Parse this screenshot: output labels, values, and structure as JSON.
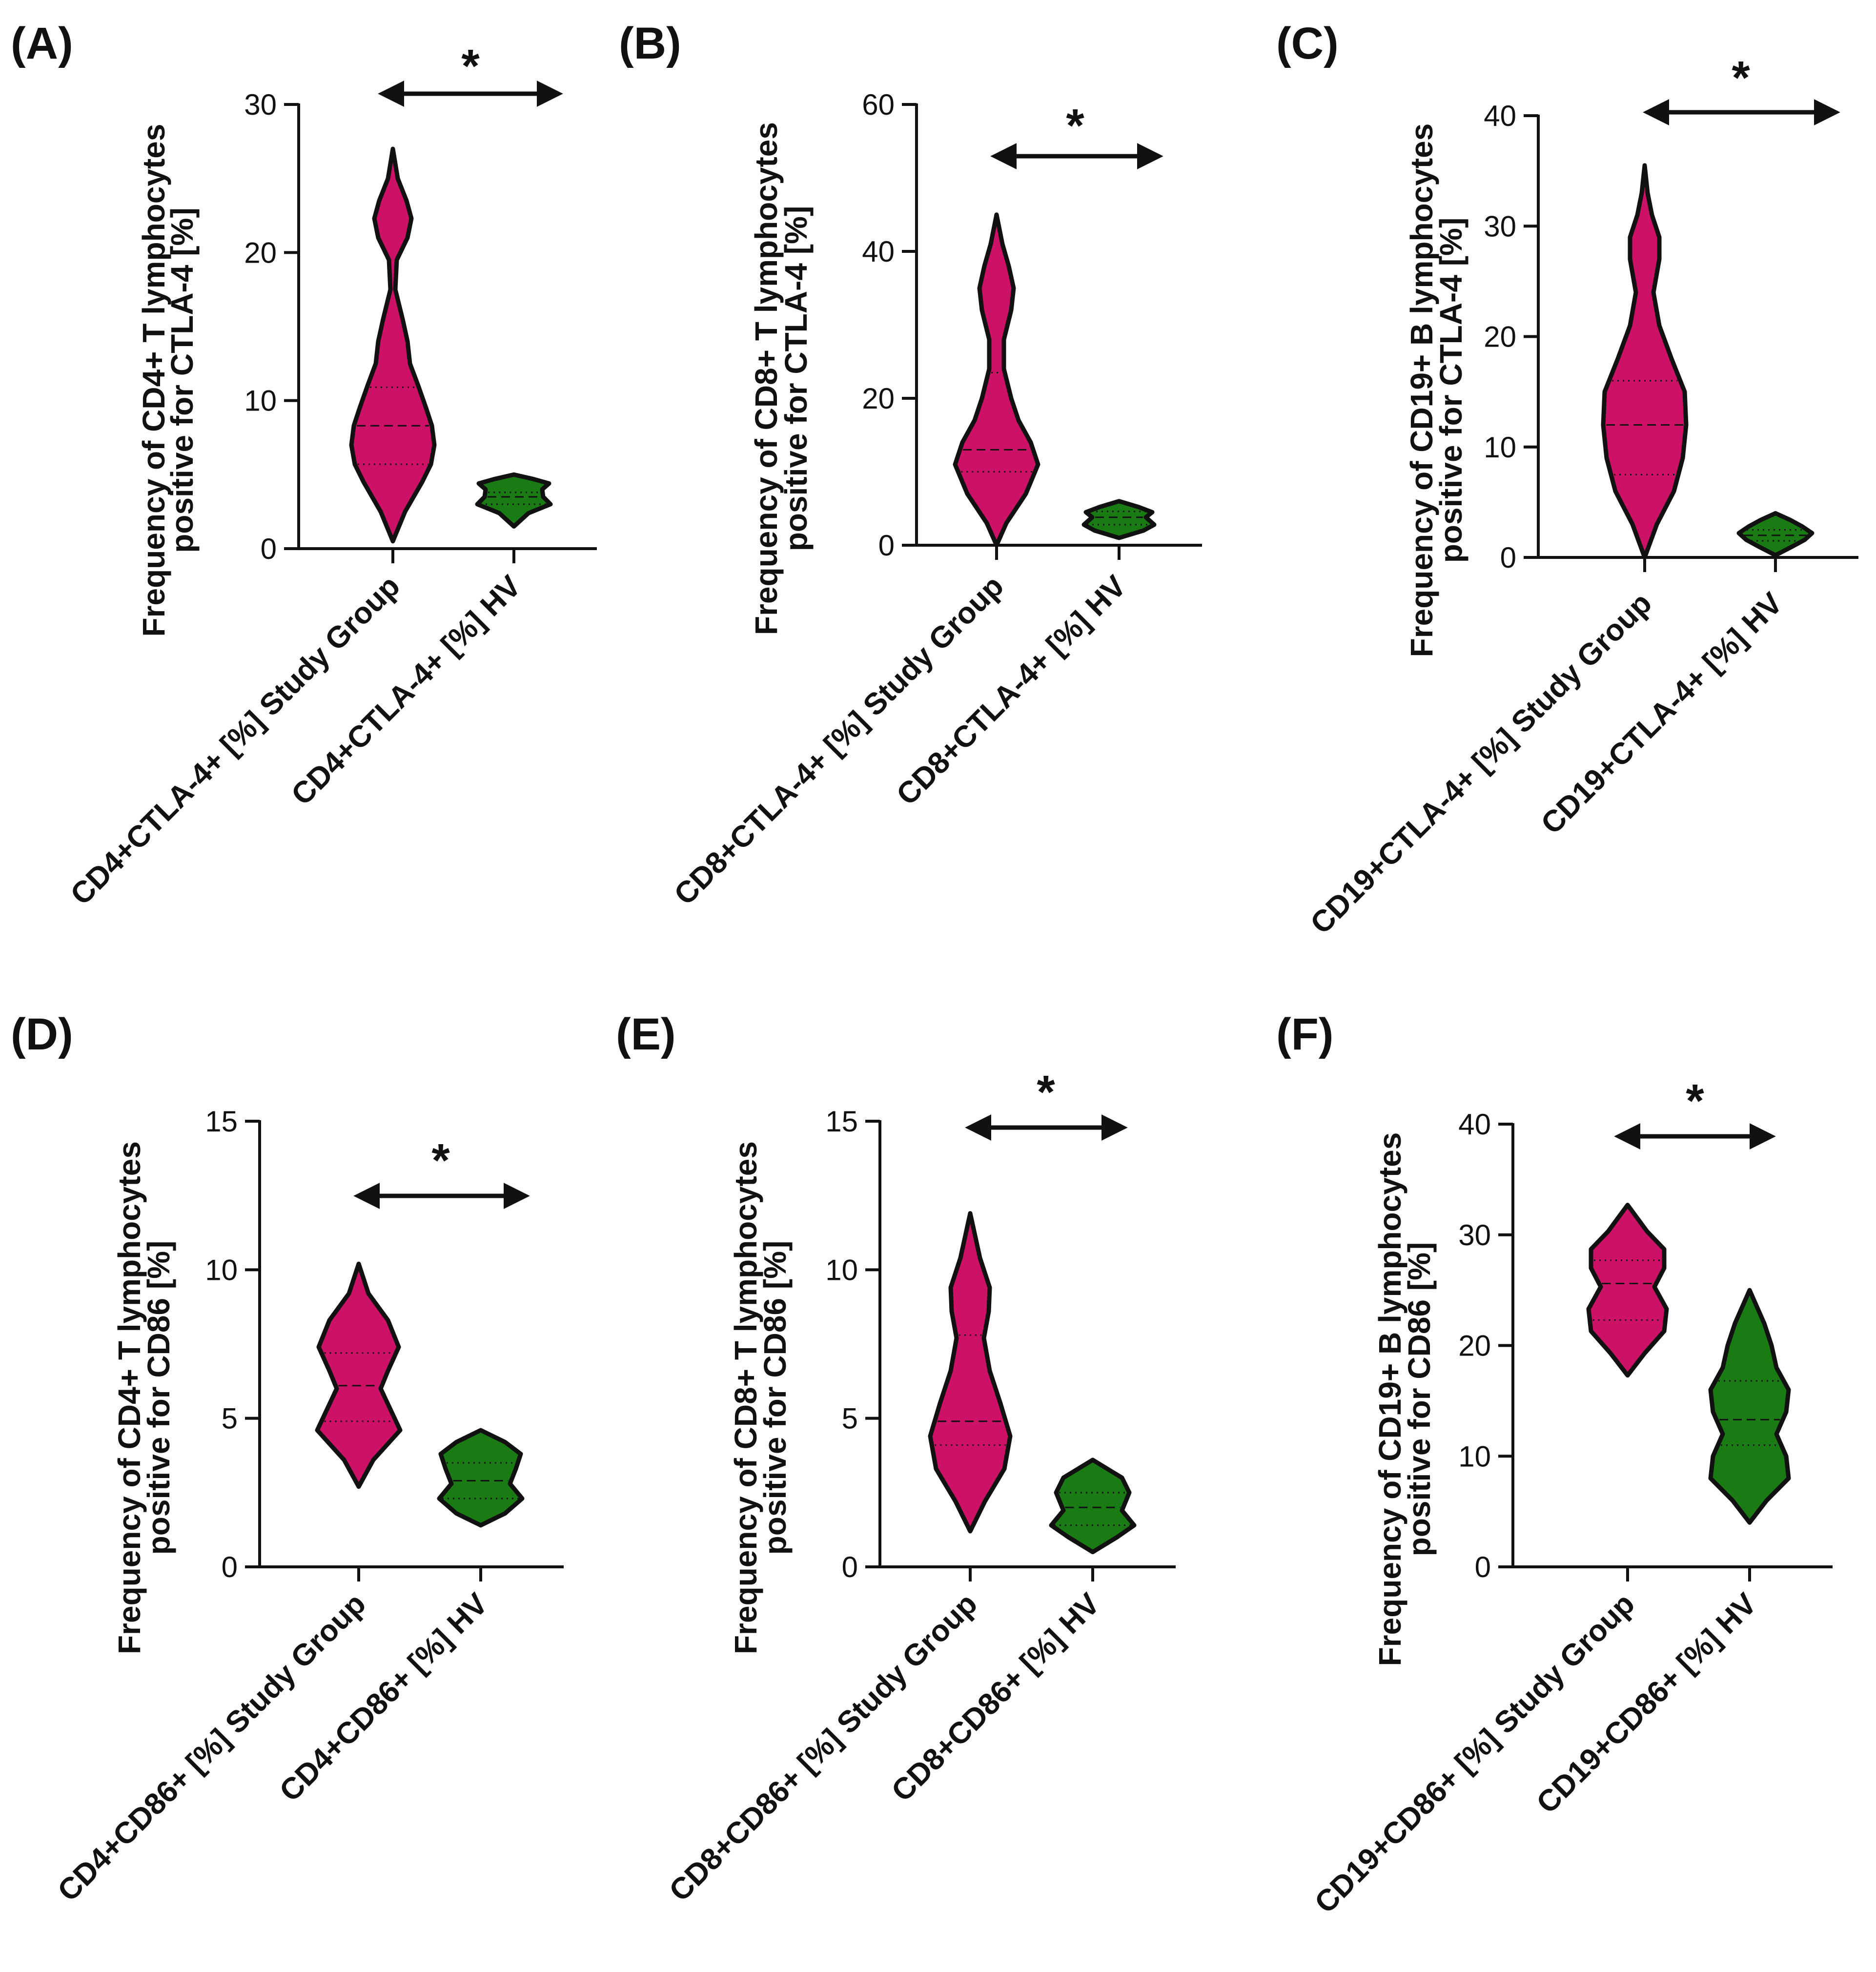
{
  "figure": {
    "panels": [
      "A",
      "B",
      "C",
      "D",
      "E",
      "F"
    ],
    "colors": {
      "study": "#cc1166",
      "hv": "#1a7a14",
      "outline": "#111111",
      "text": "#111111"
    }
  },
  "chart_data": [
    {
      "type": "violin",
      "panel_label": "(A)",
      "ylabel_lines": [
        "Frequency of CD4+ T lymphocytes",
        "positive for CTLA-4 [%]"
      ],
      "ylim": [
        0,
        30
      ],
      "yticks": [
        0,
        10,
        20,
        30
      ],
      "categories": [
        "CD4+CTLA-4+ [%] Study Group",
        "CD4+CTLA-4+ [%] HV"
      ],
      "series": [
        {
          "name": "CD4+CTLA-4+ [%] Study Group",
          "color": "#cc1166",
          "range": [
            0.5,
            27
          ],
          "q1": 5.7,
          "median": 8.3,
          "q3": 10.9,
          "profile": [
            [
              0.5,
              0.0
            ],
            [
              2.5,
              0.25
            ],
            [
              4.5,
              0.6
            ],
            [
              5.7,
              0.78
            ],
            [
              7.0,
              0.85
            ],
            [
              8.3,
              0.8
            ],
            [
              9.5,
              0.68
            ],
            [
              11.0,
              0.52
            ],
            [
              12.5,
              0.35
            ],
            [
              14.0,
              0.3
            ],
            [
              15.5,
              0.2
            ],
            [
              17.5,
              0.05
            ],
            [
              19.5,
              0.08
            ],
            [
              21.0,
              0.3
            ],
            [
              22.3,
              0.38
            ],
            [
              23.5,
              0.28
            ],
            [
              25.0,
              0.1
            ],
            [
              27.0,
              0.0
            ]
          ]
        },
        {
          "name": "CD4+CTLA-4+ [%] HV",
          "color": "#1a7a14",
          "range": [
            1.5,
            5
          ],
          "q1": 3.0,
          "median": 3.5,
          "q3": 3.8,
          "profile": [
            [
              1.5,
              0.0
            ],
            [
              2.4,
              0.3
            ],
            [
              3.0,
              0.75
            ],
            [
              3.5,
              0.6
            ],
            [
              4.0,
              0.58
            ],
            [
              4.4,
              0.72
            ],
            [
              4.7,
              0.4
            ],
            [
              5.0,
              0.0
            ]
          ]
        }
      ],
      "significance": "*"
    },
    {
      "type": "violin",
      "panel_label": "(B)",
      "ylabel_lines": [
        "Frequency of CD8+ T lymphocytes",
        "positive for CTLA-4 [%]"
      ],
      "ylim": [
        0,
        60
      ],
      "yticks": [
        0,
        20,
        40,
        60
      ],
      "categories": [
        "CD8+CTLA-4+ [%] Study Group",
        "CD8+CTLA-4+ [%] HV"
      ],
      "series": [
        {
          "name": "CD8+CTLA-4+ [%] Study Group",
          "color": "#cc1166",
          "range": [
            0,
            45
          ],
          "q1": 10.0,
          "median": 13.0,
          "q3": 23.5,
          "profile": [
            [
              0,
              0.0
            ],
            [
              3,
              0.2
            ],
            [
              7,
              0.6
            ],
            [
              11,
              0.85
            ],
            [
              14,
              0.7
            ],
            [
              17,
              0.45
            ],
            [
              20,
              0.3
            ],
            [
              24,
              0.15
            ],
            [
              28,
              0.15
            ],
            [
              32,
              0.3
            ],
            [
              35,
              0.35
            ],
            [
              38,
              0.25
            ],
            [
              41,
              0.12
            ],
            [
              45,
              0.0
            ]
          ]
        },
        {
          "name": "CD8+CTLA-4+ [%] HV",
          "color": "#1a7a14",
          "range": [
            1,
            6
          ],
          "q1": 2.8,
          "median": 3.8,
          "q3": 4.6,
          "profile": [
            [
              1.0,
              0.0
            ],
            [
              2.0,
              0.5
            ],
            [
              2.8,
              0.72
            ],
            [
              3.8,
              0.55
            ],
            [
              4.5,
              0.68
            ],
            [
              5.2,
              0.4
            ],
            [
              6.0,
              0.0
            ]
          ]
        }
      ],
      "significance": "*"
    },
    {
      "type": "violin",
      "panel_label": "(C)",
      "ylabel_lines": [
        "Frequency of CD19+ B lymphocytes",
        "positive for CTLA-4 [%]"
      ],
      "ylim": [
        0,
        40
      ],
      "yticks": [
        0,
        10,
        20,
        30,
        40
      ],
      "categories": [
        "CD19+CTLA-4+ [%] Study Group",
        "CD19+CTLA-4+ [%] HV"
      ],
      "series": [
        {
          "name": "CD19+CTLA-4+ [%] Study Group",
          "color": "#cc1166",
          "range": [
            0,
            35.5
          ],
          "q1": 7.5,
          "median": 12.0,
          "q3": 16.0,
          "profile": [
            [
              0,
              0.0
            ],
            [
              3,
              0.25
            ],
            [
              6,
              0.6
            ],
            [
              9,
              0.78
            ],
            [
              12,
              0.85
            ],
            [
              15,
              0.82
            ],
            [
              18,
              0.55
            ],
            [
              21,
              0.3
            ],
            [
              24,
              0.18
            ],
            [
              27,
              0.3
            ],
            [
              29,
              0.3
            ],
            [
              31,
              0.15
            ],
            [
              33,
              0.06
            ],
            [
              35.5,
              0.0
            ]
          ]
        },
        {
          "name": "CD19+CTLA-4+ [%] HV",
          "color": "#1a7a14",
          "range": [
            0.2,
            4
          ],
          "q1": 1.5,
          "median": 2.0,
          "q3": 2.5,
          "profile": [
            [
              0.2,
              0.0
            ],
            [
              1.0,
              0.35
            ],
            [
              1.6,
              0.6
            ],
            [
              2.2,
              0.75
            ],
            [
              2.8,
              0.55
            ],
            [
              3.4,
              0.3
            ],
            [
              4.0,
              0.0
            ]
          ]
        }
      ],
      "significance": "*"
    },
    {
      "type": "violin",
      "panel_label": "(D)",
      "ylabel_lines": [
        "Frequency of CD4+ T lymphocytes",
        "positive for CD86 [%]"
      ],
      "ylim": [
        0,
        15
      ],
      "yticks": [
        0,
        5,
        10,
        15
      ],
      "categories": [
        "CD4+CD86+ [%] Study Group",
        "CD4+CD86+ [%] HV"
      ],
      "series": [
        {
          "name": "CD4+CD86+ [%] Study Group",
          "color": "#cc1166",
          "range": [
            2.7,
            10.2
          ],
          "q1": 4.9,
          "median": 6.1,
          "q3": 7.2,
          "profile": [
            [
              2.7,
              0.0
            ],
            [
              3.6,
              0.3
            ],
            [
              4.6,
              0.85
            ],
            [
              5.3,
              0.65
            ],
            [
              6.0,
              0.45
            ],
            [
              6.6,
              0.6
            ],
            [
              7.4,
              0.82
            ],
            [
              8.3,
              0.6
            ],
            [
              9.2,
              0.2
            ],
            [
              10.2,
              0.0
            ]
          ]
        },
        {
          "name": "CD4+CD86+ [%] HV",
          "color": "#1a7a14",
          "range": [
            1.4,
            4.6
          ],
          "q1": 2.3,
          "median": 2.9,
          "q3": 3.5,
          "profile": [
            [
              1.4,
              0.0
            ],
            [
              1.8,
              0.5
            ],
            [
              2.3,
              0.85
            ],
            [
              2.8,
              0.6
            ],
            [
              3.3,
              0.72
            ],
            [
              3.8,
              0.82
            ],
            [
              4.2,
              0.5
            ],
            [
              4.6,
              0.0
            ]
          ]
        }
      ],
      "significance": "*"
    },
    {
      "type": "violin",
      "panel_label": "(E)",
      "ylabel_lines": [
        "Frequency of CD8+ T lymphocytes",
        "positive for CD86 [%]"
      ],
      "ylim": [
        0,
        15
      ],
      "yticks": [
        0,
        5,
        10,
        15
      ],
      "categories": [
        "CD8+CD86+ [%] Study Group",
        "CD8+CD86+ [%] HV"
      ],
      "series": [
        {
          "name": "CD8+CD86+ [%] Study Group",
          "color": "#cc1166",
          "range": [
            1.2,
            11.9
          ],
          "q1": 4.1,
          "median": 4.9,
          "q3": 7.8,
          "profile": [
            [
              1.2,
              0.0
            ],
            [
              2.2,
              0.3
            ],
            [
              3.3,
              0.7
            ],
            [
              4.4,
              0.82
            ],
            [
              5.5,
              0.62
            ],
            [
              6.6,
              0.4
            ],
            [
              7.7,
              0.28
            ],
            [
              8.6,
              0.38
            ],
            [
              9.4,
              0.4
            ],
            [
              10.4,
              0.2
            ],
            [
              11.9,
              0.0
            ]
          ]
        },
        {
          "name": "CD8+CD86+ [%] HV",
          "color": "#1a7a14",
          "range": [
            0.5,
            3.6
          ],
          "q1": 1.4,
          "median": 2.0,
          "q3": 2.5,
          "profile": [
            [
              0.5,
              0.0
            ],
            [
              1.0,
              0.5
            ],
            [
              1.4,
              0.85
            ],
            [
              1.9,
              0.6
            ],
            [
              2.5,
              0.75
            ],
            [
              3.0,
              0.6
            ],
            [
              3.6,
              0.0
            ]
          ]
        }
      ],
      "significance": "*"
    },
    {
      "type": "violin",
      "panel_label": "(F)",
      "ylabel_lines": [
        "Frequency of CD19+ B lymphocytes",
        "positive for CD86 [%]"
      ],
      "ylim": [
        0,
        40
      ],
      "yticks": [
        0,
        10,
        20,
        30,
        40
      ],
      "categories": [
        "CD19+CD86+ [%] Study Group",
        "CD19+CD86+ [%] HV"
      ],
      "series": [
        {
          "name": "CD19+CD86+ [%] Study Group",
          "color": "#cc1166",
          "range": [
            17.3,
            32.7
          ],
          "q1": 22.3,
          "median": 25.6,
          "q3": 27.7,
          "profile": [
            [
              17.3,
              0.0
            ],
            [
              19.3,
              0.35
            ],
            [
              21.3,
              0.75
            ],
            [
              23.3,
              0.8
            ],
            [
              25.3,
              0.55
            ],
            [
              27.0,
              0.75
            ],
            [
              28.7,
              0.75
            ],
            [
              30.3,
              0.4
            ],
            [
              32.7,
              0.0
            ]
          ]
        },
        {
          "name": "CD19+CD86+ [%] HV",
          "color": "#1a7a14",
          "range": [
            4,
            25
          ],
          "q1": 11.0,
          "median": 13.3,
          "q3": 16.8,
          "profile": [
            [
              4,
              0.0
            ],
            [
              6,
              0.35
            ],
            [
              8,
              0.8
            ],
            [
              10,
              0.75
            ],
            [
              12,
              0.55
            ],
            [
              14,
              0.75
            ],
            [
              16,
              0.8
            ],
            [
              18,
              0.55
            ],
            [
              20,
              0.45
            ],
            [
              22,
              0.3
            ],
            [
              25,
              0.0
            ]
          ]
        }
      ],
      "significance": "*"
    }
  ]
}
